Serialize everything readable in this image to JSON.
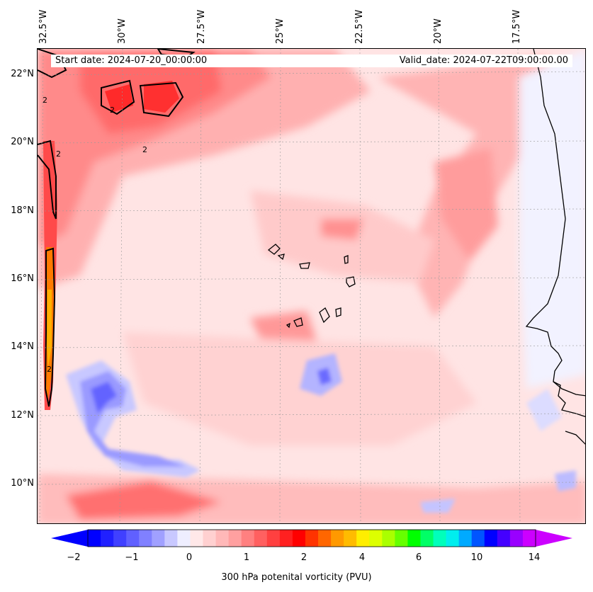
{
  "header": {
    "start_date": "Start date: 2024-07-20_00:00:00",
    "valid_date": "Valid_date: 2024-07-22T09:00:00.00"
  },
  "map": {
    "lon_labels": [
      "32.5°W",
      "30°W",
      "27.5°W",
      "25°W",
      "22.5°W",
      "20°W",
      "17.5°W"
    ],
    "lat_labels": [
      "22°N",
      "20°N",
      "18°N",
      "16°N",
      "14°N",
      "12°N",
      "10°N"
    ],
    "contour_label": "2",
    "extent": {
      "lon_min": -32.8,
      "lon_max": -15.4,
      "lat_min": 8.9,
      "lat_max": 22.8
    }
  },
  "colorbar": {
    "label": "300 hPa potenital vorticity (PVU)",
    "tick_labels": [
      "−2",
      "−1",
      "0",
      "1",
      "2",
      "4",
      "6",
      "10",
      "14"
    ],
    "colors": [
      "#0000ff",
      "#2020ff",
      "#4040ff",
      "#6060ff",
      "#8080ff",
      "#a0a0ff",
      "#c8c8ff",
      "#eeeeff",
      "#ffe8e8",
      "#ffd0d0",
      "#ffb8b8",
      "#ffa0a0",
      "#ff8080",
      "#ff6060",
      "#ff4040",
      "#ff2020",
      "#ff0000",
      "#ff3300",
      "#ff6600",
      "#ff9900",
      "#ffbb00",
      "#ffee00",
      "#ddff00",
      "#aaff00",
      "#66ff00",
      "#00ff00",
      "#00ff66",
      "#00ffbb",
      "#00eeee",
      "#00aaff",
      "#0055ff",
      "#0000ff",
      "#4400ff",
      "#9900ff",
      "#cc00ff"
    ],
    "extend_low_color": "#0000ff",
    "extend_high_color": "#cc00ff"
  }
}
